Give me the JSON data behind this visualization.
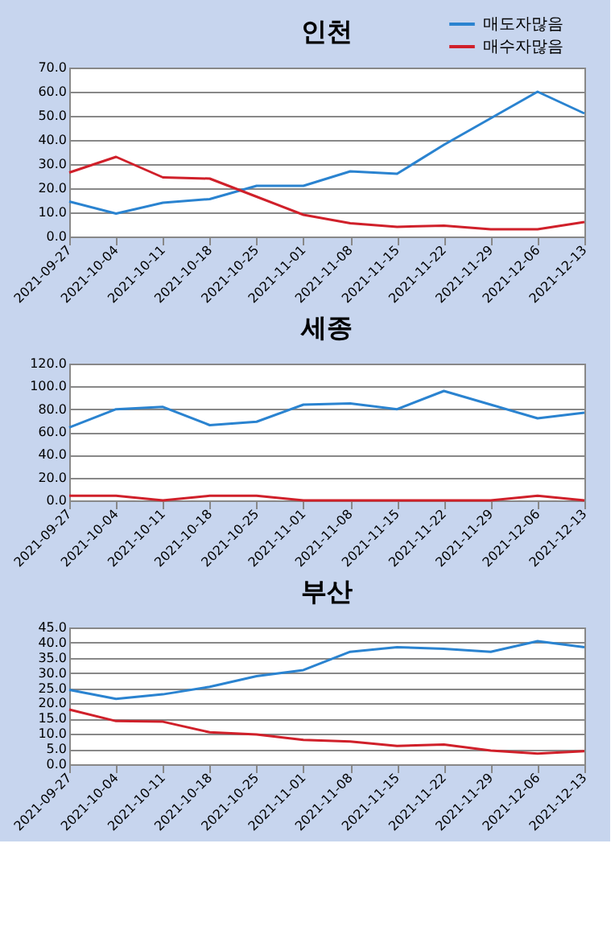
{
  "chart_data": [
    {
      "type": "line",
      "title": "인천",
      "categories": [
        "2021-09-27",
        "2021-10-04",
        "2021-10-11",
        "2021-10-18",
        "2021-10-25",
        "2021-11-01",
        "2021-11-08",
        "2021-11-15",
        "2021-11-22",
        "2021-11-29",
        "2021-12-06",
        "2021-12-13"
      ],
      "series": [
        {
          "name": "매도자많음",
          "color": "#2a83d0",
          "values": [
            14.5,
            9.5,
            14,
            15.5,
            21,
            21,
            27,
            26,
            38,
            49,
            60,
            51
          ]
        },
        {
          "name": "매수자많음",
          "color": "#d0202a",
          "values": [
            26.5,
            33,
            24.5,
            24,
            16.5,
            9,
            5.5,
            4,
            4.5,
            3,
            3,
            6
          ]
        }
      ],
      "ylim": [
        0,
        70
      ],
      "yticks": [
        {
          "value": 0,
          "label": "0.0"
        },
        {
          "value": 10,
          "label": "10.0"
        },
        {
          "value": 20,
          "label": "20.0"
        },
        {
          "value": 30,
          "label": "30.0"
        },
        {
          "value": 40,
          "label": "40.0"
        },
        {
          "value": 50,
          "label": "50.0"
        },
        {
          "value": 60,
          "label": "60.0"
        },
        {
          "value": 70,
          "label": "70.0"
        }
      ],
      "grid": "y",
      "legend": "top right"
    },
    {
      "type": "line",
      "title": "세종",
      "categories": [
        "2021-09-27",
        "2021-10-04",
        "2021-10-11",
        "2021-10-18",
        "2021-10-25",
        "2021-11-01",
        "2021-11-08",
        "2021-11-15",
        "2021-11-22",
        "2021-11-29",
        "2021-12-06",
        "2021-12-13"
      ],
      "series": [
        {
          "name": "매도자많음",
          "color": "#2a83d0",
          "values": [
            64,
            80,
            82,
            66,
            69,
            84,
            85,
            80,
            96,
            84,
            72,
            77
          ]
        },
        {
          "name": "매수자많음",
          "color": "#d0202a",
          "values": [
            4,
            4,
            0,
            4,
            4,
            0,
            0,
            0,
            0,
            0,
            4,
            0
          ]
        }
      ],
      "ylim": [
        0,
        120
      ],
      "yticks": [
        {
          "value": 0,
          "label": "0.0"
        },
        {
          "value": 20,
          "label": "20.0"
        },
        {
          "value": 40,
          "label": "40.0"
        },
        {
          "value": 60,
          "label": "60.0"
        },
        {
          "value": 80,
          "label": "80.0"
        },
        {
          "value": 100,
          "label": "100.0"
        },
        {
          "value": 120,
          "label": "120.0"
        }
      ],
      "grid": "y",
      "legend": "top right"
    },
    {
      "type": "line",
      "title": "부산",
      "categories": [
        "2021-09-27",
        "2021-10-04",
        "2021-10-11",
        "2021-10-18",
        "2021-10-25",
        "2021-11-01",
        "2021-11-08",
        "2021-11-15",
        "2021-11-22",
        "2021-11-29",
        "2021-12-06",
        "2021-12-13"
      ],
      "series": [
        {
          "name": "매도자많음",
          "color": "#2a83d0",
          "values": [
            24.5,
            21.5,
            23,
            25.5,
            29,
            31,
            37,
            38.5,
            38,
            37,
            40.5,
            38.5
          ]
        },
        {
          "name": "매수자많음",
          "color": "#d0202a",
          "values": [
            18,
            14.2,
            14,
            10.5,
            9.8,
            8,
            7.5,
            6,
            6.5,
            4.5,
            3.5,
            4.3
          ]
        }
      ],
      "ylim": [
        0,
        45
      ],
      "yticks": [
        {
          "value": 0,
          "label": "0.0"
        },
        {
          "value": 5,
          "label": "5.0"
        },
        {
          "value": 10,
          "label": "10.0"
        },
        {
          "value": 15,
          "label": "15.0"
        },
        {
          "value": 20,
          "label": "20.0"
        },
        {
          "value": 25,
          "label": "25.0"
        },
        {
          "value": 30,
          "label": "30.0"
        },
        {
          "value": 35,
          "label": "35.0"
        },
        {
          "value": 40,
          "label": "40.0"
        },
        {
          "value": 45,
          "label": "45.0"
        }
      ],
      "grid": "y",
      "legend": "top right"
    }
  ]
}
